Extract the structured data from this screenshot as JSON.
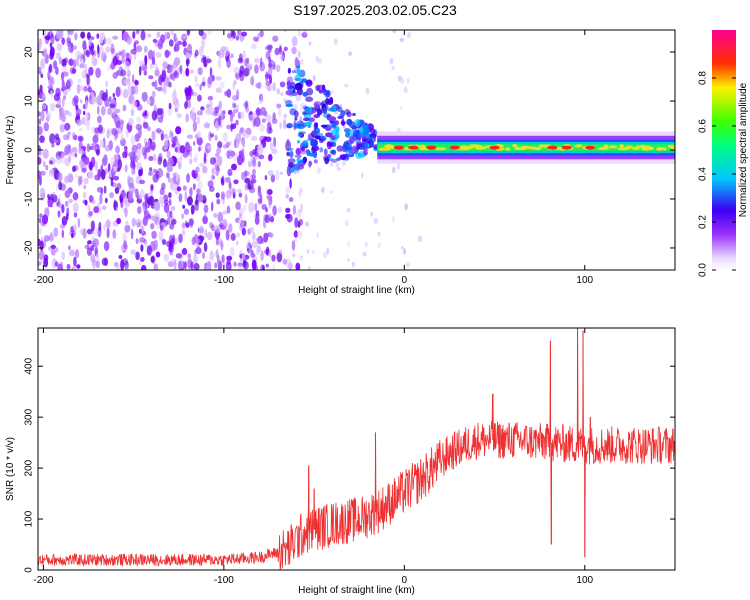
{
  "title": "S197.2025.203.02.05.C23",
  "chart_data": [
    {
      "type": "heatmap",
      "xlabel": "Height of straight line (km)",
      "ylabel": "Frequency (Hz)",
      "xlim": [
        -203,
        150
      ],
      "ylim": [
        -24.5,
        24.5
      ],
      "xticks": [
        -200,
        -100,
        0,
        100
      ],
      "yticks": [
        -20,
        -10,
        0,
        10,
        20
      ],
      "colorbar": {
        "label": "Normalized spectral amplitude",
        "range": [
          0,
          1
        ],
        "ticks": [
          0.0,
          0.2,
          0.4,
          0.6,
          0.8
        ],
        "tick_labels": [
          "0.0",
          "0.2",
          "0.4",
          "0.6",
          "0.8"
        ],
        "colormap": "white-purple-blue-cyan-green-yellow-red-magenta"
      },
      "description_values": {
        "noise_region_x": [
          -203,
          -65
        ],
        "transition_region_x": [
          -65,
          -15
        ],
        "signal_region_x": [
          -15,
          150
        ],
        "signal_center_frequency": 0.5,
        "signal_band_halfwidth": 1.5,
        "peak_hotspots_x": [
          -3,
          5,
          15,
          28,
          50,
          82,
          90,
          103
        ]
      }
    },
    {
      "type": "line",
      "xlabel": "Height of straight line (km)",
      "ylabel": "SNR (10 * v/v)",
      "xlim": [
        -203,
        150
      ],
      "ylim": [
        0,
        475
      ],
      "xticks": [
        -200,
        -100,
        0,
        100
      ],
      "yticks": [
        0,
        100,
        200,
        300,
        400
      ],
      "color": "#ee3030",
      "trend": [
        {
          "x": -203,
          "y": 20
        },
        {
          "x": -100,
          "y": 20
        },
        {
          "x": -80,
          "y": 25
        },
        {
          "x": -65,
          "y": 40
        },
        {
          "x": -55,
          "y": 75
        },
        {
          "x": -40,
          "y": 90
        },
        {
          "x": -25,
          "y": 100
        },
        {
          "x": -15,
          "y": 115
        },
        {
          "x": -5,
          "y": 140
        },
        {
          "x": 10,
          "y": 180
        },
        {
          "x": 25,
          "y": 230
        },
        {
          "x": 40,
          "y": 255
        },
        {
          "x": 60,
          "y": 255
        },
        {
          "x": 80,
          "y": 250
        },
        {
          "x": 100,
          "y": 245
        },
        {
          "x": 120,
          "y": 245
        },
        {
          "x": 150,
          "y": 245
        }
      ],
      "spikes": [
        {
          "x": -53,
          "y": 205
        },
        {
          "x": -50,
          "y": 160
        },
        {
          "x": -16,
          "y": 270
        },
        {
          "x": 49,
          "y": 345
        },
        {
          "x": 81,
          "y": 450
        },
        {
          "x": 81.5,
          "y": 50
        },
        {
          "x": 96,
          "y": 475
        },
        {
          "x": 99,
          "y": 470
        },
        {
          "x": 100,
          "y": 25
        },
        {
          "x": 103,
          "y": 300
        }
      ]
    }
  ]
}
